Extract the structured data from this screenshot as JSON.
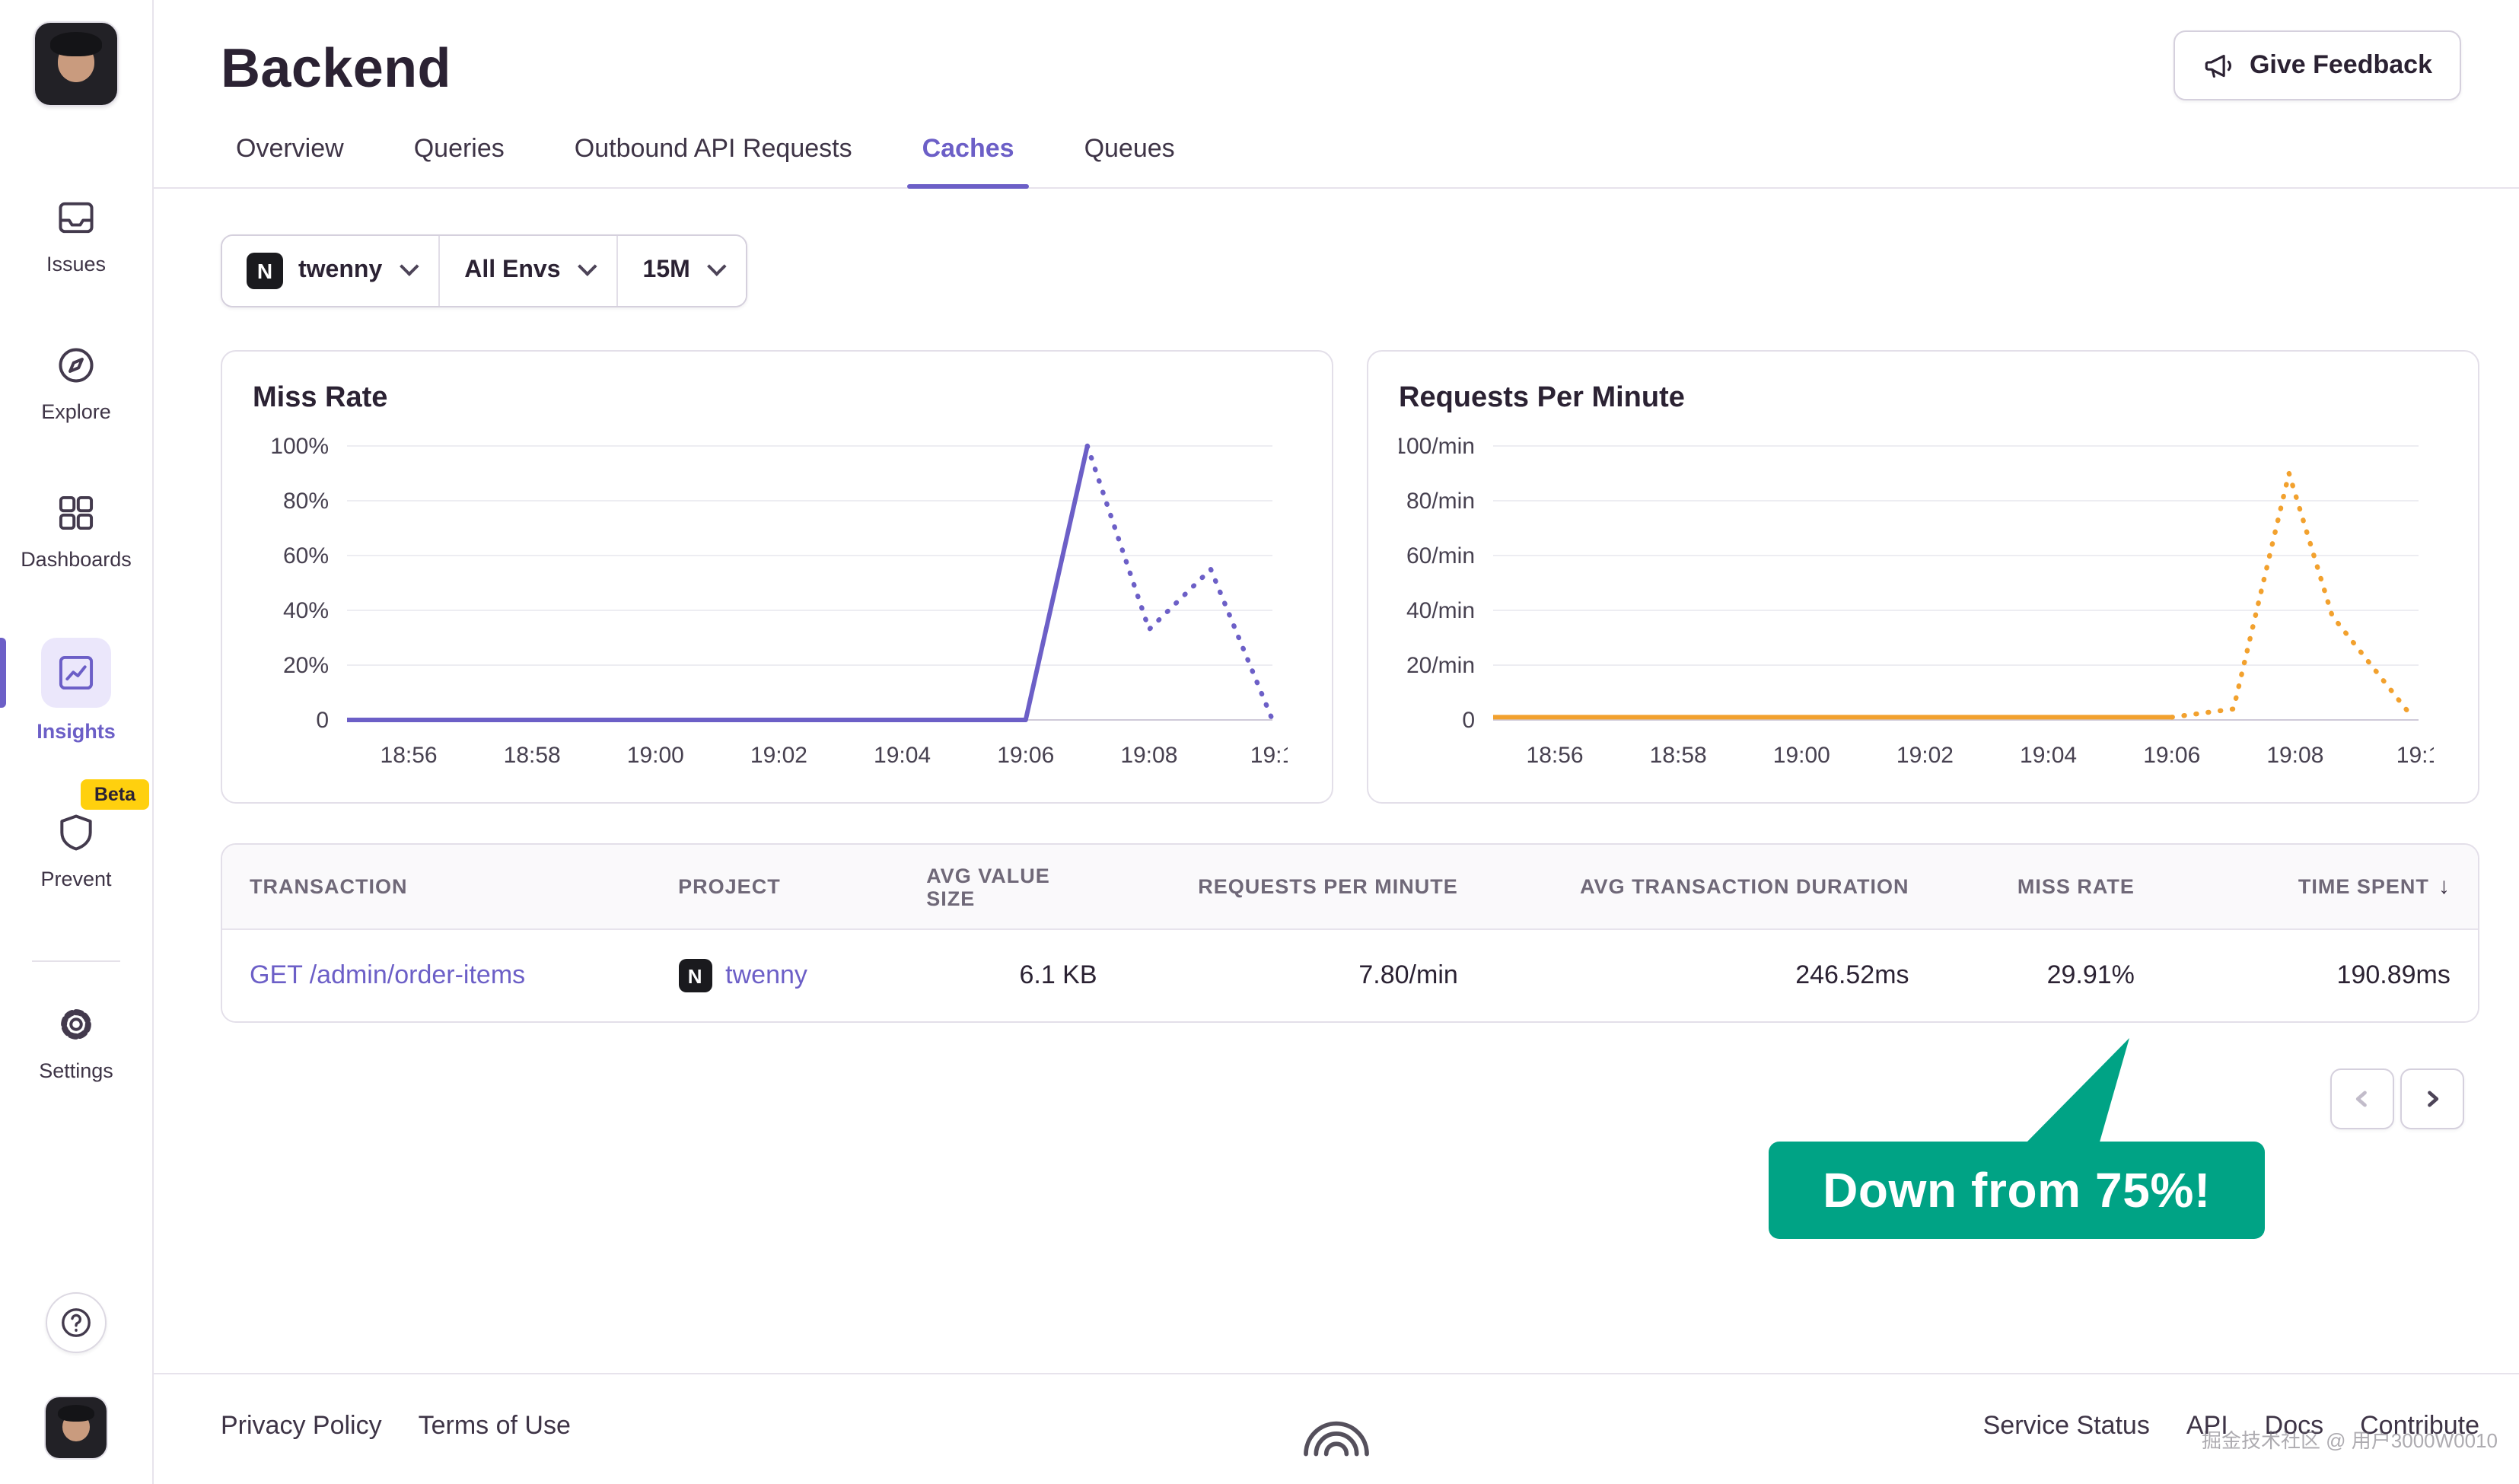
{
  "colors": {
    "accent": "#6C5FC7",
    "chart_purple": "#6C5FC7",
    "chart_orange": "#F2A12E",
    "callout_green": "#00A385",
    "beta_yellow": "#FFD00E"
  },
  "sidebar": {
    "items": [
      {
        "label": "Issues"
      },
      {
        "label": "Explore"
      },
      {
        "label": "Dashboards"
      },
      {
        "label": "Insights",
        "active": true
      },
      {
        "label": "Prevent"
      },
      {
        "label": "Settings"
      }
    ],
    "beta_badge": "Beta"
  },
  "header": {
    "title": "Backend",
    "feedback_button": "Give Feedback"
  },
  "tabs": [
    {
      "label": "Overview"
    },
    {
      "label": "Queries"
    },
    {
      "label": "Outbound API Requests"
    },
    {
      "label": "Caches",
      "active": true
    },
    {
      "label": "Queues"
    }
  ],
  "filters": {
    "project_icon": "N",
    "project": "twenny",
    "environment": "All Envs",
    "period": "15M"
  },
  "chart_data": [
    {
      "type": "line",
      "title": "Miss Rate",
      "ylim": [
        0,
        100
      ],
      "y_unit": "%",
      "x_range": [
        0,
        15
      ],
      "grid": true,
      "legend": "none",
      "y_ticks": [
        {
          "v": 100,
          "label": "100%"
        },
        {
          "v": 80,
          "label": "80%"
        },
        {
          "v": 60,
          "label": "60%"
        },
        {
          "v": 40,
          "label": "40%"
        },
        {
          "v": 20,
          "label": "20%"
        },
        {
          "v": 0,
          "label": "0"
        }
      ],
      "x_ticks": [
        {
          "m": 1,
          "label": "18:56"
        },
        {
          "m": 3,
          "label": "18:58"
        },
        {
          "m": 5,
          "label": "19:00"
        },
        {
          "m": 7,
          "label": "19:02"
        },
        {
          "m": 9,
          "label": "19:04"
        },
        {
          "m": 11,
          "label": "19:06"
        },
        {
          "m": 13,
          "label": "19:08"
        },
        {
          "m": 15,
          "label": "19:1"
        }
      ],
      "series": [
        {
          "name": "Miss Rate",
          "color": "#6C5FC7",
          "solid": [
            [
              0,
              0
            ],
            [
              11,
              0
            ],
            [
              12,
              100
            ]
          ],
          "dashed": [
            [
              12,
              100
            ],
            [
              13,
              33
            ],
            [
              14,
              55
            ],
            [
              15,
              0
            ]
          ]
        }
      ]
    },
    {
      "type": "line",
      "title": "Requests Per Minute",
      "ylim": [
        0,
        100
      ],
      "y_unit": "/min",
      "x_range": [
        0,
        15
      ],
      "grid": true,
      "legend": "none",
      "y_ticks": [
        {
          "v": 100,
          "label": "100/min"
        },
        {
          "v": 80,
          "label": "80/min"
        },
        {
          "v": 60,
          "label": "60/min"
        },
        {
          "v": 40,
          "label": "40/min"
        },
        {
          "v": 20,
          "label": "20/min"
        },
        {
          "v": 0,
          "label": "0"
        }
      ],
      "x_ticks": [
        {
          "m": 1,
          "label": "18:56"
        },
        {
          "m": 3,
          "label": "18:58"
        },
        {
          "m": 5,
          "label": "19:00"
        },
        {
          "m": 7,
          "label": "19:02"
        },
        {
          "m": 9,
          "label": "19:04"
        },
        {
          "m": 11,
          "label": "19:06"
        },
        {
          "m": 13,
          "label": "19:08"
        },
        {
          "m": 15,
          "label": "19:1"
        }
      ],
      "series": [
        {
          "name": "Requests Per Minute",
          "color": "#F2A12E",
          "solid": [
            [
              0,
              1
            ],
            [
              11,
              1
            ]
          ],
          "dashed": [
            [
              11,
              1
            ],
            [
              12,
              4
            ],
            [
              12.9,
              90
            ],
            [
              13.6,
              38
            ],
            [
              14.9,
              1
            ]
          ]
        }
      ]
    }
  ],
  "table": {
    "columns": [
      {
        "label": "TRANSACTION"
      },
      {
        "label": "PROJECT"
      },
      {
        "label": "AVG VALUE SIZE"
      },
      {
        "label": "REQUESTS PER MINUTE"
      },
      {
        "label": "AVG TRANSACTION DURATION"
      },
      {
        "label": "MISS RATE"
      },
      {
        "label": "TIME SPENT"
      }
    ],
    "sort_arrow": "↓",
    "rows": [
      {
        "transaction": "GET /admin/order-items",
        "project_icon": "N",
        "project": "twenny",
        "avg_value_size": "6.1 KB",
        "requests_per_minute": "7.80/min",
        "avg_transaction_duration": "246.52ms",
        "miss_rate": "29.91%",
        "time_spent": "190.89ms"
      }
    ]
  },
  "annotation": {
    "text": "Down from 75%!"
  },
  "footer": {
    "left_links": [
      "Privacy Policy",
      "Terms of Use"
    ],
    "right_links": [
      "Service Status",
      "API",
      "Docs",
      "Contribute"
    ],
    "watermark": "掘金技术社区 @ 用户3000W0010"
  }
}
